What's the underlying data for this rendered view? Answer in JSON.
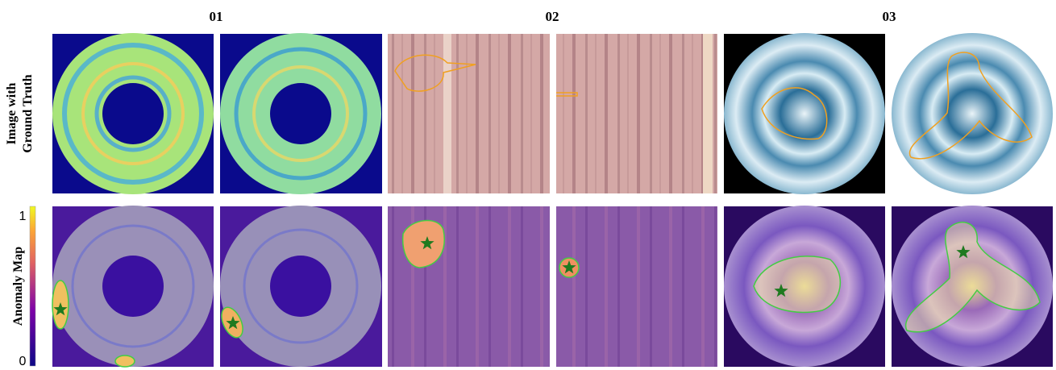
{
  "header": {
    "columns": [
      "01",
      "02",
      "03"
    ]
  },
  "rows": [
    {
      "label_lines": [
        "Image with",
        "Ground Truth"
      ]
    },
    {
      "label_lines": [
        "Anomaly Map"
      ]
    }
  ],
  "colorbar": {
    "top_label": "1",
    "bottom_label": "0"
  }
}
